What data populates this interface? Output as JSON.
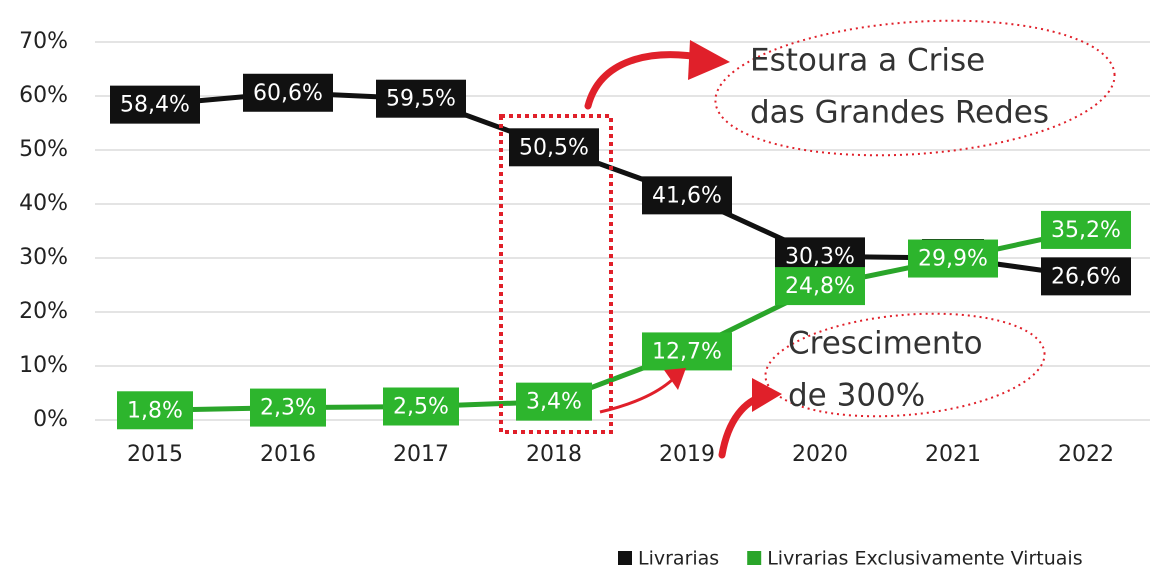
{
  "chart_data": {
    "type": "line",
    "categories": [
      "2015",
      "2016",
      "2017",
      "2018",
      "2019",
      "2020",
      "2021",
      "2022"
    ],
    "series": [
      {
        "name": "Livrarias",
        "color": "#111111",
        "values": [
          58.4,
          60.6,
          59.5,
          50.5,
          41.6,
          30.3,
          30,
          26.6
        ],
        "value_labels": [
          "58,4%",
          "60,6%",
          "59,5%",
          "50,5%",
          "41,6%",
          "30,3%",
          "30%",
          "26,6%"
        ]
      },
      {
        "name": "Livrarias Exclusivamente Virtuais",
        "color": "#2aa52a",
        "values": [
          1.8,
          2.3,
          2.5,
          3.4,
          12.7,
          24.8,
          29.9,
          35.2
        ],
        "value_labels": [
          "1,8%",
          "2,3%",
          "2,5%",
          "3,4%",
          "12,7%",
          "24,8%",
          "29,9%",
          "35,2%"
        ]
      }
    ],
    "ylim": [
      0,
      70
    ],
    "yticks": [
      {
        "value": 0,
        "label": "0%"
      },
      {
        "value": 10,
        "label": "10%"
      },
      {
        "value": 20,
        "label": "20%"
      },
      {
        "value": 30,
        "label": "30%"
      },
      {
        "value": 40,
        "label": "40%"
      },
      {
        "value": 50,
        "label": "50%"
      },
      {
        "value": 60,
        "label": "60%"
      },
      {
        "value": 70,
        "label": "70%"
      }
    ],
    "grid": true,
    "legend": "bottom-right",
    "annotations": [
      {
        "lines": [
          "Estoura a Crise",
          "das Grandes Redes"
        ]
      },
      {
        "lines": [
          "Crescimento",
          "de 300%"
        ]
      }
    ]
  }
}
